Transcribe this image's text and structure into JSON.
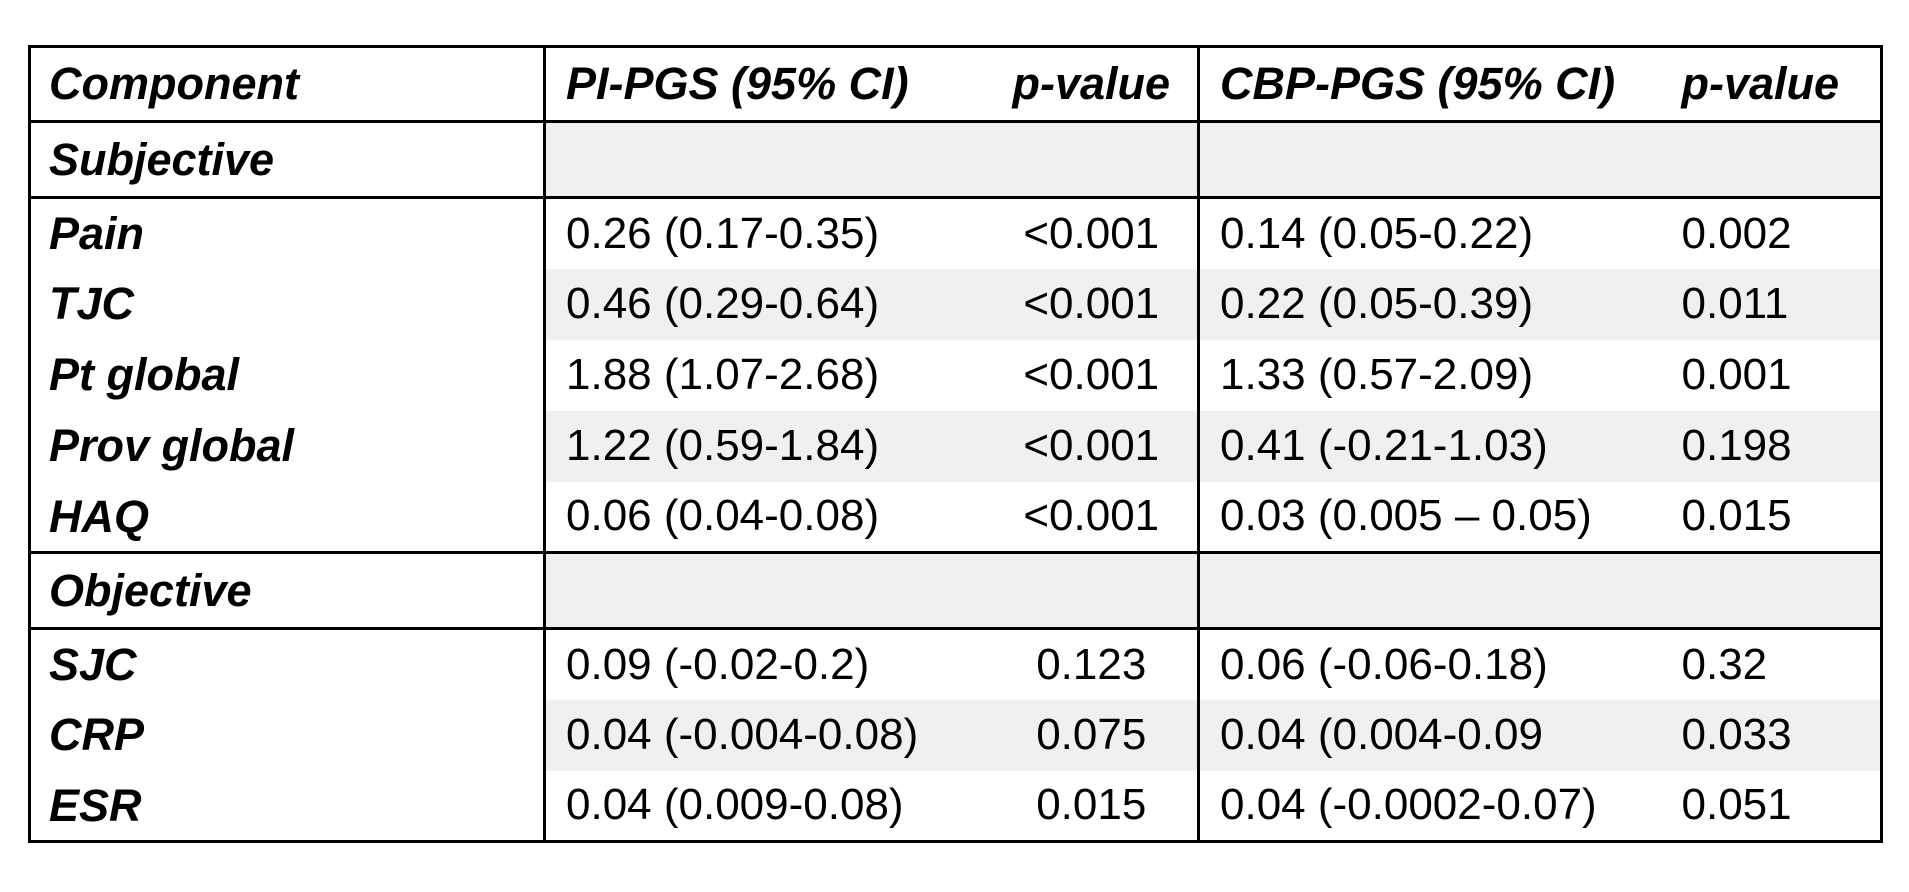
{
  "table": {
    "columns": [
      {
        "label": "Component"
      },
      {
        "label": "PI-PGS (95% CI)"
      },
      {
        "label": "p-value"
      },
      {
        "label": "CBP-PGS (95% CI)"
      },
      {
        "label": "p-value"
      }
    ],
    "sections": [
      {
        "label": "Subjective"
      },
      {
        "label": "Objective"
      }
    ],
    "rows": [
      {
        "label": "Pain",
        "pi_ci": "0.26 (0.17-0.35)",
        "pi_p": "<0.001",
        "cbp_ci": "0.14 (0.05-0.22)",
        "cbp_p": "0.002"
      },
      {
        "label": "TJC",
        "pi_ci": "0.46 (0.29-0.64)",
        "pi_p": "<0.001",
        "cbp_ci": "0.22 (0.05-0.39)",
        "cbp_p": "0.011"
      },
      {
        "label": "Pt global",
        "pi_ci": "1.88 (1.07-2.68)",
        "pi_p": "<0.001",
        "cbp_ci": "1.33 (0.57-2.09)",
        "cbp_p": "0.001"
      },
      {
        "label": "Prov global",
        "pi_ci": "1.22 (0.59-1.84)",
        "pi_p": "<0.001",
        "cbp_ci": "0.41 (-0.21-1.03)",
        "cbp_p": "0.198"
      },
      {
        "label": "HAQ",
        "pi_ci": "0.06 (0.04-0.08)",
        "pi_p": "<0.001",
        "cbp_ci": "0.03 (0.005 – 0.05)",
        "cbp_p": "0.015"
      },
      {
        "label": "SJC",
        "pi_ci": "0.09 (-0.02-0.2)",
        "pi_p": "0.123",
        "cbp_ci": "0.06 (-0.06-0.18)",
        "cbp_p": "0.32"
      },
      {
        "label": "CRP",
        "pi_ci": "0.04 (-0.004-0.08)",
        "pi_p": "0.075",
        "cbp_ci": "0.04 (0.004-0.09",
        "cbp_p": "0.033"
      },
      {
        "label": "ESR",
        "pi_ci": "0.04 (0.009-0.08)",
        "pi_p": "0.015",
        "cbp_ci": "0.04 (-0.0002-0.07)",
        "cbp_p": "0.051"
      }
    ],
    "colors": {
      "row_shade": "#f0f0f0",
      "border": "#000000",
      "text": "#000000",
      "background": "#ffffff"
    }
  }
}
